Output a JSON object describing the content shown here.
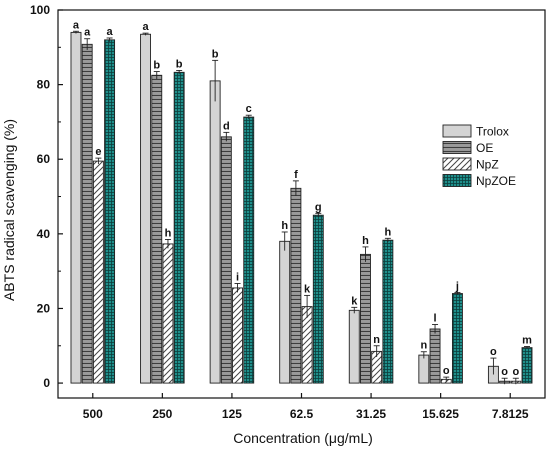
{
  "chart_data": {
    "type": "bar",
    "title": "",
    "xlabel": "Concentration (μg/mL)",
    "ylabel": "ABTS radical scavenging (%)",
    "ylim": [
      -4,
      100
    ],
    "yticks": [
      0,
      20,
      40,
      60,
      80,
      100
    ],
    "grid": false,
    "legend_position": "top-right",
    "categories": [
      "500",
      "250",
      "125",
      "62.5",
      "31.25",
      "15.625",
      "7.8125"
    ],
    "series": [
      {
        "name": "Trolox",
        "pattern": "solid-light-gray",
        "color": "#d4d4d4",
        "values": [
          94.0,
          93.5,
          81.0,
          38.0,
          19.5,
          7.5,
          4.5
        ],
        "errors": [
          0.3,
          0.3,
          5.5,
          2.5,
          0.8,
          0.9,
          2.2
        ],
        "letters": [
          "a",
          "a",
          "b",
          "h",
          "k",
          "n",
          "o"
        ]
      },
      {
        "name": "OE",
        "pattern": "horizontal-lines-dark-gray",
        "color": "#8c8c8c",
        "values": [
          90.8,
          82.5,
          66.0,
          52.2,
          34.5,
          14.5,
          0.5
        ],
        "errors": [
          1.5,
          1.0,
          1.2,
          2.0,
          2.0,
          1.2,
          0.8
        ],
        "letters": [
          "a",
          "b",
          "d",
          "f",
          "h",
          "l",
          "o"
        ]
      },
      {
        "name": "NpZ",
        "pattern": "diagonal-hatch",
        "color": "#ffffff",
        "values": [
          59.5,
          37.3,
          25.5,
          20.5,
          8.5,
          1.0,
          0.5
        ],
        "errors": [
          0.8,
          1.2,
          1.2,
          3.0,
          1.5,
          0.6,
          0.8
        ],
        "letters": [
          "e",
          "h",
          "i",
          "k",
          "n",
          "o",
          "o"
        ]
      },
      {
        "name": "NpZOE",
        "pattern": "teal-grid",
        "color": "#1f8f8b",
        "values": [
          92.0,
          83.3,
          71.3,
          45.0,
          38.3,
          24.0,
          9.5
        ],
        "errors": [
          0.5,
          0.5,
          0.5,
          0.5,
          0.5,
          0.3,
          0.3
        ],
        "letters": [
          "a",
          "b",
          "c",
          "g",
          "h",
          "j",
          "m"
        ]
      }
    ]
  }
}
